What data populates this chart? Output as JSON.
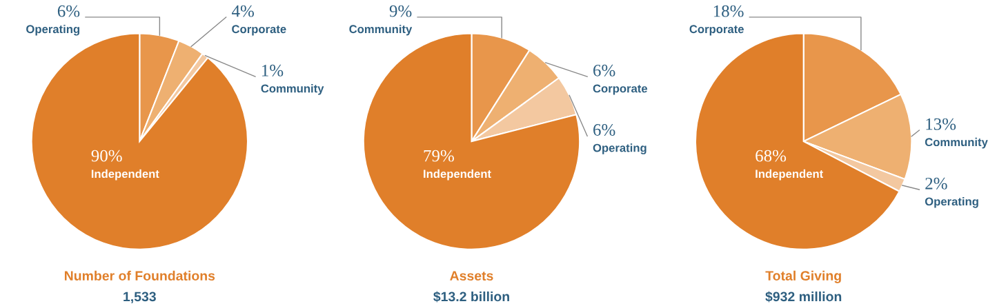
{
  "chart_data": [
    {
      "type": "pie",
      "title": "Number of Foundations",
      "subtitle": "1,533",
      "categories": [
        "Operating",
        "Corporate",
        "Community",
        "Independent"
      ],
      "values": [
        6,
        4,
        1,
        90
      ],
      "value_labels": [
        "6%",
        "4%",
        "1%",
        "90%"
      ],
      "colors": [
        "#e8964b",
        "#eeb071",
        "#f3c8a0",
        "#e07f2a"
      ]
    },
    {
      "type": "pie",
      "title": "Assets",
      "subtitle": "$13.2 billion",
      "categories": [
        "Community",
        "Corporate",
        "Operating",
        "Independent"
      ],
      "values": [
        9,
        6,
        6,
        79
      ],
      "value_labels": [
        "9%",
        "6%",
        "6%",
        "79%"
      ],
      "colors": [
        "#e8964b",
        "#eeb071",
        "#f3c8a0",
        "#e07f2a"
      ]
    },
    {
      "type": "pie",
      "title": "Total Giving",
      "subtitle": "$932 million",
      "categories": [
        "Corporate",
        "Community",
        "Operating",
        "Independent"
      ],
      "values": [
        18,
        13,
        2,
        68
      ],
      "value_labels": [
        "18%",
        "13%",
        "2%",
        "68%"
      ],
      "colors": [
        "#e8964b",
        "#eeb071",
        "#f3c8a0",
        "#e07f2a"
      ]
    }
  ]
}
